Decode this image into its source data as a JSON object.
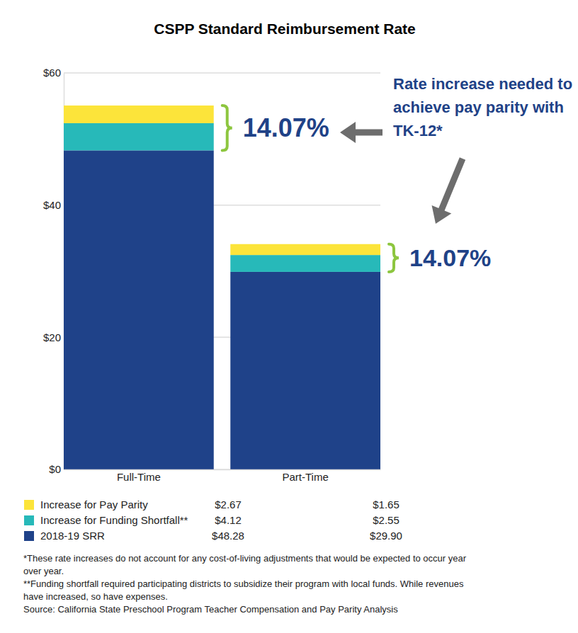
{
  "chart_data": {
    "type": "bar",
    "title": "CSPP Standard Reimbursement Rate",
    "categories": [
      "Full-Time",
      "Part-Time"
    ],
    "series": [
      {
        "name": "2018-19 SRR",
        "color": "#1f4289",
        "values": [
          48.28,
          29.9
        ],
        "value_labels": [
          "$48.28",
          "$29.90"
        ]
      },
      {
        "name": "Increase for Funding Shortfall**",
        "color": "#27b9b9",
        "values": [
          4.12,
          2.55
        ],
        "value_labels": [
          "$4.12",
          "$2.55"
        ]
      },
      {
        "name": "Increase for Pay Parity",
        "color": "#fce43a",
        "values": [
          2.67,
          1.65
        ],
        "value_labels": [
          "$2.67",
          "$1.65"
        ]
      }
    ],
    "stacked": true,
    "ylim": [
      0,
      60
    ],
    "yticks": [
      {
        "value": 0,
        "label": "$0"
      },
      {
        "value": 20,
        "label": "$20"
      },
      {
        "value": 40,
        "label": "$40"
      },
      {
        "value": 60,
        "label": "$60"
      }
    ],
    "grid": true,
    "legend": "bottom",
    "annotations": [
      {
        "text": "14.07%",
        "category": "Full-Time"
      },
      {
        "text": "14.07%",
        "category": "Part-Time"
      },
      {
        "text": "Rate increase needed to achieve pay parity with TK-12*"
      }
    ],
    "notes": [
      "*These rate increases do not account for any cost-of-living adjustments that would be expected to occur year over year.",
      "**Funding shortfall required participating districts to subsidize their program with local funds. While revenues have increased, so have expenses.",
      "Source: California State Preschool Program Teacher Compensation and Pay Parity Analysis"
    ]
  }
}
